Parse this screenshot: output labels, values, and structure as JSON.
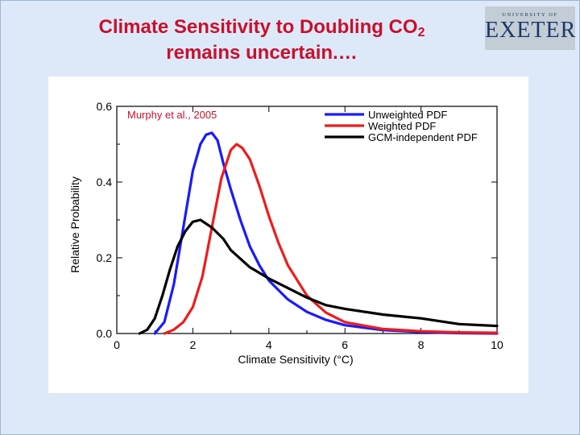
{
  "slide": {
    "title_line1": "Climate Sensitivity to Doubling CO",
    "title_sub": "2",
    "title_line2": "remains uncertain.…"
  },
  "logo": {
    "university_of": "UNIVERSITY OF",
    "name": "EXETER",
    "color": "#1c3768"
  },
  "chart_data": {
    "type": "line",
    "title": "",
    "annotation": "Murphy et al., 2005",
    "xlabel": "Climate Sensitivity (°C)",
    "ylabel": "Relative Probability",
    "xlim": [
      0,
      10
    ],
    "ylim": [
      0.0,
      0.6
    ],
    "x_ticks": [
      0,
      2,
      4,
      6,
      8,
      10
    ],
    "y_ticks": [
      0.0,
      0.2,
      0.4,
      0.6
    ],
    "y_tick_labels": [
      "0.0",
      "0.2",
      "0.4",
      "0.6"
    ],
    "legend_position": "top-right",
    "grid": false,
    "series": [
      {
        "name": "Unweighted PDF",
        "color": "#1a1aff",
        "x": [
          1.0,
          1.25,
          1.5,
          1.75,
          2.0,
          2.2,
          2.35,
          2.5,
          2.65,
          2.8,
          3.0,
          3.25,
          3.5,
          3.75,
          4.0,
          4.5,
          5.0,
          5.5,
          6.0,
          7.0,
          8.0,
          9.0,
          10.0
        ],
        "y": [
          0.0,
          0.03,
          0.13,
          0.28,
          0.43,
          0.5,
          0.525,
          0.53,
          0.51,
          0.45,
          0.38,
          0.3,
          0.23,
          0.18,
          0.14,
          0.09,
          0.057,
          0.036,
          0.022,
          0.009,
          0.004,
          0.001,
          0.0
        ]
      },
      {
        "name": "Weighted PDF",
        "color": "#ee1c1c",
        "x": [
          1.25,
          1.5,
          1.75,
          2.0,
          2.25,
          2.5,
          2.75,
          3.0,
          3.15,
          3.3,
          3.5,
          3.75,
          4.0,
          4.25,
          4.5,
          5.0,
          5.5,
          6.0,
          7.0,
          8.0,
          9.0,
          10.0
        ],
        "y": [
          0.0,
          0.01,
          0.03,
          0.07,
          0.15,
          0.28,
          0.41,
          0.485,
          0.5,
          0.49,
          0.46,
          0.39,
          0.31,
          0.24,
          0.18,
          0.1,
          0.055,
          0.03,
          0.012,
          0.006,
          0.003,
          0.002
        ]
      },
      {
        "name": "GCM-independent PDF",
        "color": "#000000",
        "x": [
          0.6,
          0.8,
          1.0,
          1.2,
          1.4,
          1.6,
          1.8,
          2.0,
          2.2,
          2.5,
          2.8,
          3.0,
          3.5,
          4.0,
          4.5,
          5.0,
          5.5,
          6.0,
          7.0,
          8.0,
          9.0,
          10.0
        ],
        "y": [
          0.0,
          0.01,
          0.04,
          0.1,
          0.17,
          0.23,
          0.27,
          0.295,
          0.3,
          0.28,
          0.25,
          0.22,
          0.175,
          0.145,
          0.12,
          0.095,
          0.075,
          0.065,
          0.05,
          0.04,
          0.025,
          0.02
        ]
      }
    ]
  }
}
